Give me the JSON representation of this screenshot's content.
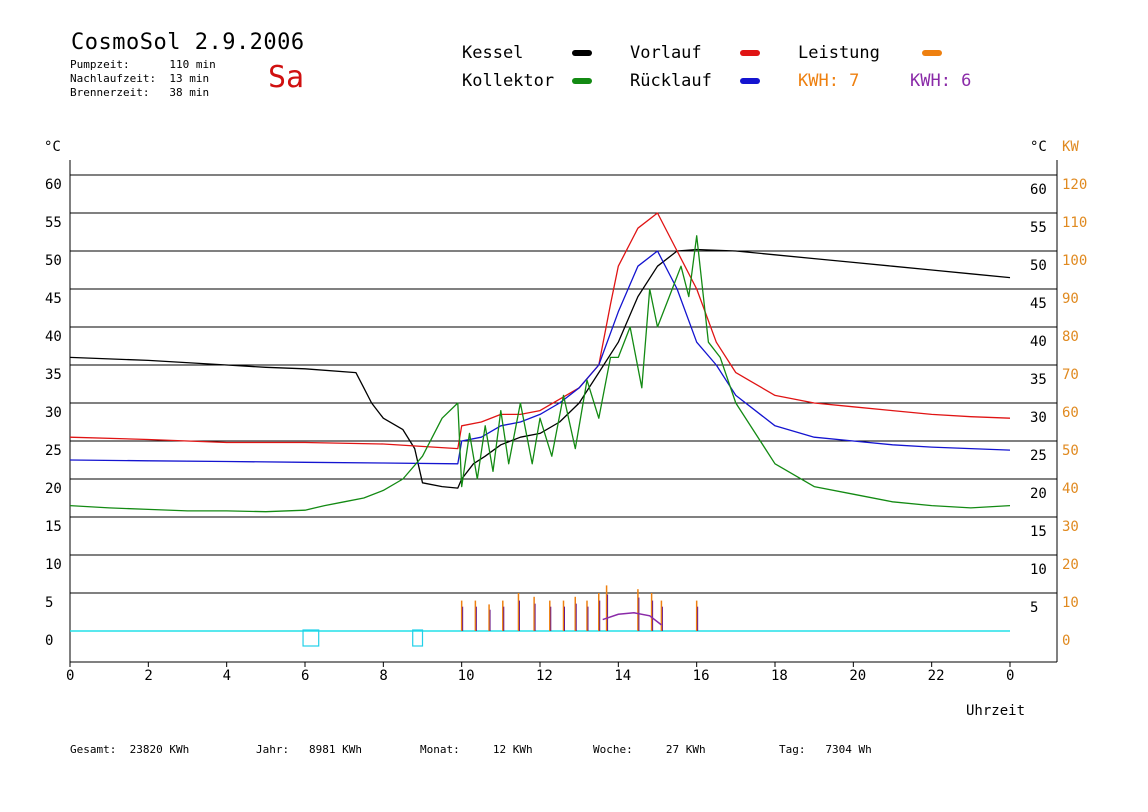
{
  "header": {
    "title": "CosmoSol 2.9.2006",
    "day": "Sa",
    "pumpzeit": "Pumpzeit:      110 min",
    "nachlaufzeit": "Nachlaufzeit:  13 min",
    "brennerzeit": "Brennerzeit:   38 min"
  },
  "legend": {
    "kessel": "Kessel",
    "kollektor": "Kollektor",
    "vorlauf": "Vorlauf",
    "ruecklauf": "Rücklauf",
    "leistung": "Leistung",
    "kwh1": "KWH: 7",
    "kwh2": "KWH: 6",
    "colors": {
      "kessel": "#000000",
      "kollektor": "#138a13",
      "vorlauf": "#e01414",
      "ruecklauf": "#1414d0",
      "leistung": "#ee8010",
      "kwh1": "#ee8010",
      "kwh2": "#8a2aa8",
      "baseline": "#22e0e8",
      "markers": "#22d0e8"
    }
  },
  "footer": {
    "gesamt": "Gesamt:  23820 KWh",
    "jahr": "Jahr:   8981 KWh",
    "monat": "Monat:     12 KWh",
    "woche": "Woche:     27 KWh",
    "tag": "Tag:   7304 Wh"
  },
  "chart_data": {
    "type": "line",
    "xlabel": "Uhrzeit",
    "ylabel_left": "°C",
    "ylabel_right_1": "°C",
    "ylabel_right_2": "KW",
    "xlim": [
      0,
      24
    ],
    "ylim": [
      -4,
      64
    ],
    "x_tick_labels": [
      "0",
      "2",
      "4",
      "6",
      "8",
      "10",
      "12",
      "14",
      "16",
      "18",
      "20",
      "22",
      "0"
    ],
    "y_ticks_left": [
      0,
      5,
      10,
      15,
      20,
      25,
      30,
      35,
      40,
      45,
      50,
      55,
      60
    ],
    "y_ticks_right": [
      5,
      10,
      15,
      20,
      25,
      30,
      35,
      40,
      45,
      50,
      55,
      60
    ],
    "y_ticks_kw": [
      0,
      10,
      20,
      30,
      40,
      50,
      60,
      70,
      80,
      90,
      100,
      110,
      120
    ],
    "grid_lines_y": [
      0,
      5,
      10,
      15,
      20,
      25,
      30,
      35,
      40,
      45,
      50,
      55,
      60
    ],
    "series": [
      {
        "name": "Kessel",
        "color": "#000000",
        "x": [
          0,
          2,
          4,
          5,
          6,
          7.3,
          7.5,
          7.7,
          8.0,
          8.5,
          8.8,
          9.0,
          9.5,
          9.9,
          10.0,
          10.3,
          10.6,
          11.0,
          11.5,
          12.0,
          12.5,
          13.0,
          13.5,
          14.0,
          14.5,
          15.0,
          15.5,
          16.0,
          17.0,
          18.0,
          19.0,
          20.0,
          21.0,
          22.0,
          23.0,
          24.0
        ],
        "y": [
          36,
          35.6,
          35,
          34.7,
          34.5,
          34,
          32,
          30,
          28,
          26.5,
          24,
          19.5,
          19,
          18.8,
          20,
          22,
          23,
          24.5,
          25.5,
          26,
          27.5,
          30,
          34,
          38,
          44,
          48,
          50,
          50.2,
          50,
          49.5,
          49,
          48.5,
          48,
          47.5,
          47,
          46.5
        ]
      },
      {
        "name": "Vorlauf",
        "color": "#e01414",
        "x": [
          0,
          2,
          4,
          6,
          8,
          9.9,
          10.0,
          10.5,
          11.0,
          11.5,
          12.0,
          12.5,
          13.0,
          13.5,
          13.8,
          14.0,
          14.5,
          15.0,
          15.5,
          16.0,
          16.5,
          17.0,
          18.0,
          19.0,
          20.0,
          21.0,
          22.0,
          23.0,
          24.0
        ],
        "y": [
          25.5,
          25.2,
          24.8,
          24.8,
          24.6,
          24,
          27,
          27.5,
          28.5,
          28.5,
          29,
          30.5,
          32,
          35,
          43,
          48,
          53,
          55,
          50,
          45,
          38,
          34,
          31,
          30,
          29.5,
          29,
          28.5,
          28.2,
          28
        ]
      },
      {
        "name": "Rücklauf",
        "color": "#1414d0",
        "x": [
          0,
          2,
          4,
          6,
          8,
          9.9,
          10.0,
          10.5,
          11.0,
          11.5,
          12.0,
          12.5,
          13.0,
          13.5,
          14.0,
          14.5,
          15.0,
          15.5,
          16.0,
          16.5,
          17.0,
          18.0,
          19.0,
          20.0,
          21.0,
          22.0,
          23.0,
          24.0
        ],
        "y": [
          22.5,
          22.4,
          22.3,
          22.2,
          22.1,
          22,
          25,
          25.5,
          27,
          27.5,
          28.5,
          30,
          32,
          35,
          42,
          48,
          50,
          45,
          38,
          35,
          31,
          27,
          25.5,
          25,
          24.5,
          24.2,
          24,
          23.8
        ]
      },
      {
        "name": "Kollektor",
        "color": "#138a13",
        "x": [
          0,
          1,
          2,
          3,
          4,
          5,
          6,
          6.5,
          7,
          7.5,
          8.0,
          8.5,
          9.0,
          9.5,
          9.9,
          10.0,
          10.2,
          10.4,
          10.6,
          10.8,
          11.0,
          11.2,
          11.5,
          11.8,
          12.0,
          12.3,
          12.6,
          12.9,
          13.2,
          13.5,
          13.8,
          14.0,
          14.3,
          14.6,
          14.8,
          15.0,
          15.3,
          15.6,
          15.8,
          16.0,
          16.3,
          16.6,
          17.0,
          17.5,
          18.0,
          19.0,
          20.0,
          21.0,
          22.0,
          23.0,
          24.0
        ],
        "y": [
          16.5,
          16.2,
          16.0,
          15.8,
          15.8,
          15.7,
          15.9,
          16.5,
          17,
          17.5,
          18.5,
          20,
          23,
          28,
          30,
          19,
          26,
          20,
          27,
          21,
          29,
          22,
          30,
          22,
          28,
          23,
          31,
          24,
          33,
          28,
          36,
          36,
          40,
          32,
          45,
          40,
          44,
          48,
          44,
          52,
          38,
          36,
          30,
          26,
          22,
          19,
          18,
          17,
          16.5,
          16.2,
          16.5
        ]
      }
    ],
    "leistung_peaks_x": [
      10.0,
      10.35,
      10.7,
      11.05,
      11.45,
      11.85,
      12.25,
      12.6,
      12.9,
      13.2,
      13.5,
      13.7,
      14.5,
      14.85,
      15.1,
      16.0
    ],
    "leistung_peaks_y": [
      4,
      4,
      3.5,
      4,
      5,
      4.5,
      4,
      4,
      4.5,
      4,
      5,
      6,
      5.5,
      5,
      4,
      4
    ],
    "baseline_value": 0,
    "markers": [
      {
        "x_from": 5.95,
        "x_to": 6.35
      },
      {
        "x_from": 8.75,
        "x_to": 9.0
      }
    ]
  }
}
